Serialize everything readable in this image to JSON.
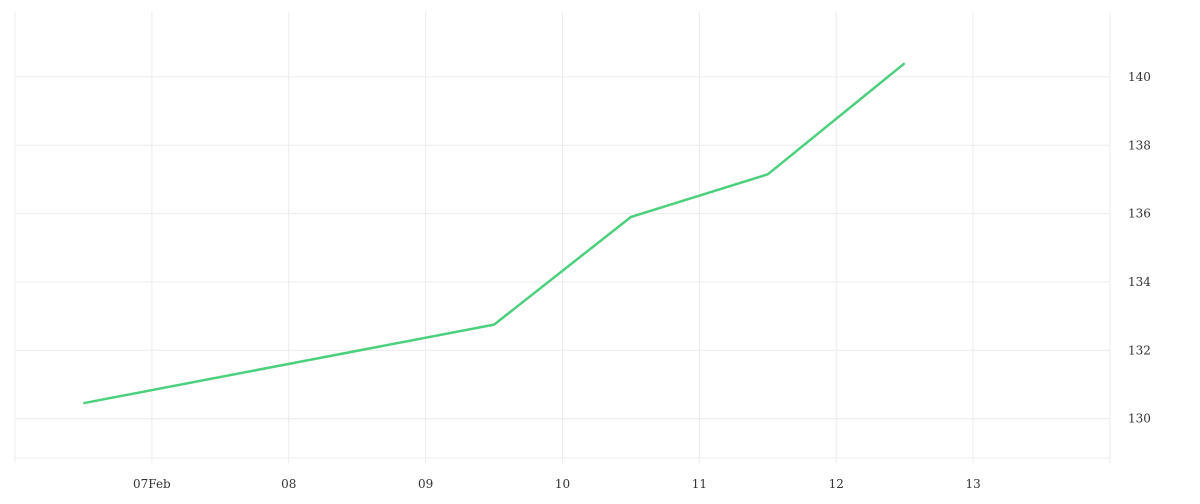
{
  "chart_data": {
    "type": "line",
    "title": "",
    "xlabel": "",
    "ylabel": "",
    "x_ticks": [
      {
        "date": "2024-02-07",
        "label": "07Feb"
      },
      {
        "date": "2024-02-08",
        "label": "08"
      },
      {
        "date": "2024-02-09",
        "label": "09"
      },
      {
        "date": "2024-02-10",
        "label": "10"
      },
      {
        "date": "2024-02-11",
        "label": "11"
      },
      {
        "date": "2024-02-12",
        "label": "12"
      },
      {
        "date": "2024-02-13",
        "label": "13"
      }
    ],
    "y_ticks": [
      130,
      132,
      134,
      136,
      138,
      140
    ],
    "xlim": [
      "2024-02-06T00:00",
      "2024-02-14T00:00"
    ],
    "ylim": [
      128.7,
      141.9
    ],
    "y_axis_position": "right",
    "grid": true,
    "series": [
      {
        "color": "#4cd07d",
        "points": [
          {
            "x": "2024-02-06T12:00",
            "y": 130.45
          },
          {
            "x": "2024-02-09T12:00",
            "y": 132.75
          },
          {
            "x": "2024-02-10T12:00",
            "y": 135.9
          },
          {
            "x": "2024-02-11T12:00",
            "y": 137.15
          },
          {
            "x": "2024-02-12T12:00",
            "y": 140.4
          }
        ]
      }
    ]
  }
}
